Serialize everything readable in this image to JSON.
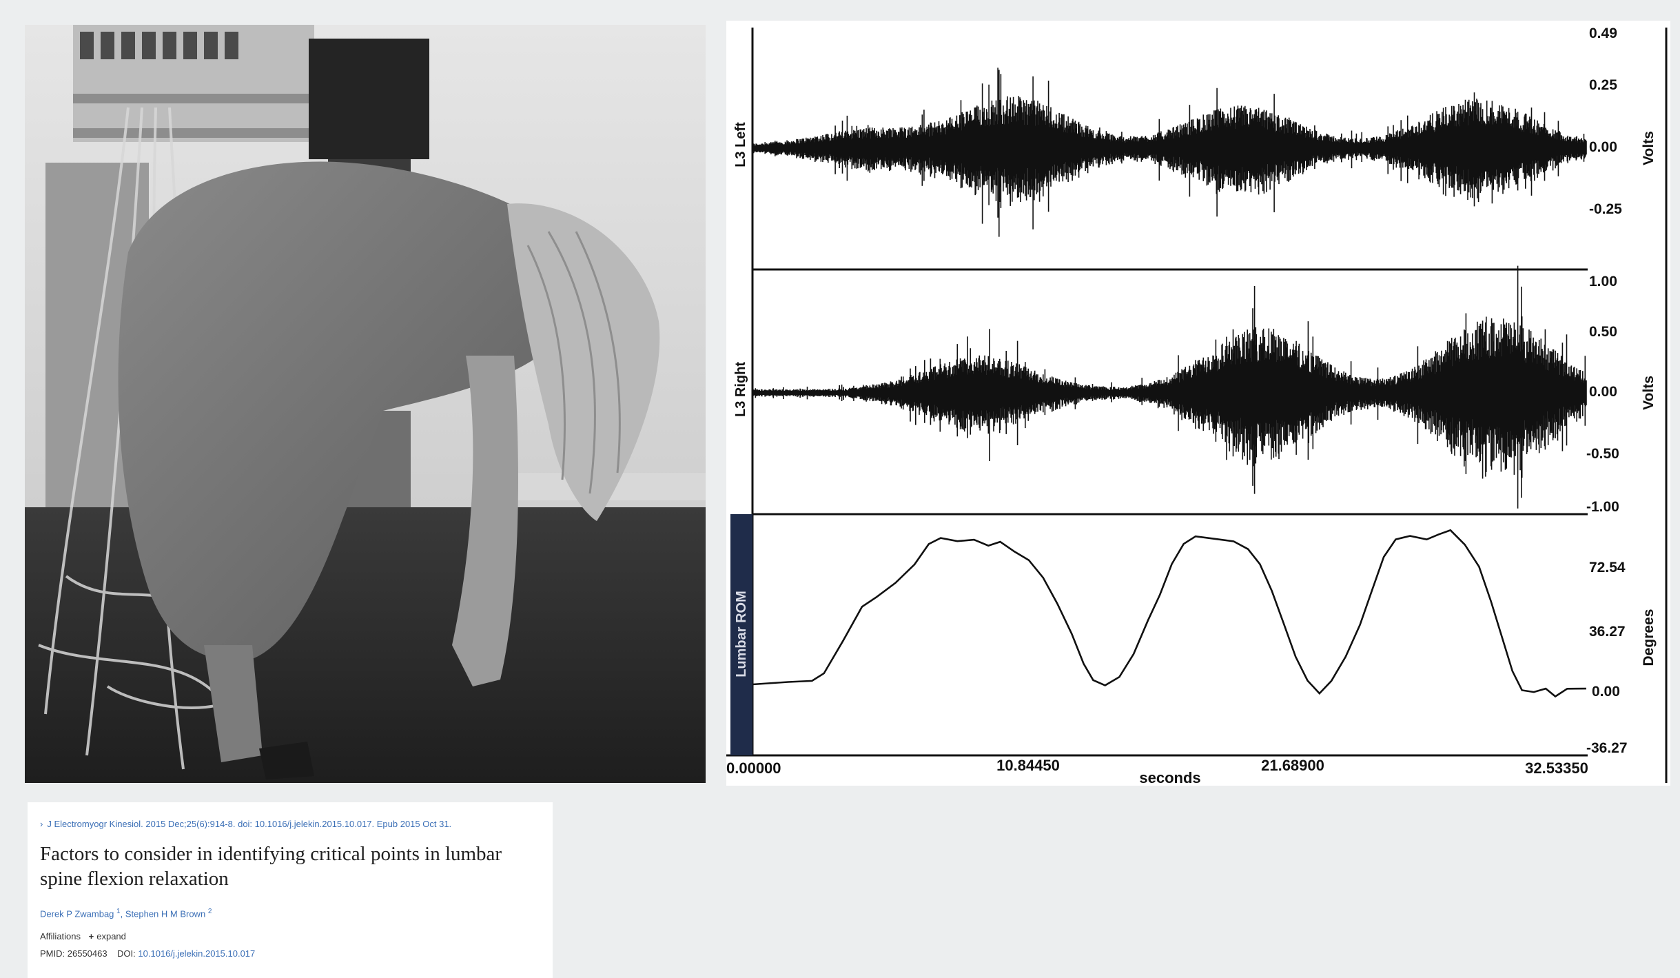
{
  "photo": {
    "description_icon": "person-bending-forward-photo"
  },
  "citation": {
    "journal_line": "J Electromyogr Kinesiol. 2015 Dec;25(6):914-8. doi: 10.1016/j.jelekin.2015.10.017. Epub 2015 Oct 31.",
    "title": "Factors to consider in identifying critical points in lumbar spine flexion relaxation",
    "authors": [
      {
        "name": "Derek P Zwambag",
        "sup": "1"
      },
      {
        "name": "Stephen H M Brown",
        "sup": "2"
      }
    ],
    "affiliations_label": "Affiliations",
    "expand_label": "expand",
    "pmid_label": "PMID:",
    "pmid": "26550463",
    "doi_label": "DOI:",
    "doi": "10.1016/j.jelekin.2015.10.017"
  },
  "chart_data": {
    "type": "line",
    "xlabel": "seconds",
    "x_ticks": [
      "0.00000",
      "10.84450",
      "21.68900",
      "32.53350"
    ],
    "x_tick_values": [
      0,
      10.8445,
      21.689,
      32.5335
    ],
    "xlim": [
      0,
      35
    ],
    "panels": [
      {
        "name": "L3 Left",
        "unit": "Volts",
        "yticks": [
          "0.49",
          "0.25",
          "0.00",
          "-0.25"
        ],
        "ylim": [
          -0.49,
          0.49
        ],
        "signal": "emg",
        "bursts": [
          {
            "t": 5.0,
            "amp": 0.07
          },
          {
            "t": 11.0,
            "amp": 0.21
          },
          {
            "t": 20.5,
            "amp": 0.17
          },
          {
            "t": 30.5,
            "amp": 0.2
          }
        ]
      },
      {
        "name": "L3 Right",
        "unit": "Volts",
        "yticks": [
          "1.00",
          "0.50",
          "0.00",
          "-0.50",
          "-1.00"
        ],
        "ylim": [
          -1.0,
          1.0
        ],
        "signal": "emg",
        "bursts": [
          {
            "t": 9.5,
            "amp": 0.3
          },
          {
            "t": 21.3,
            "amp": 0.55
          },
          {
            "t": 31.2,
            "amp": 0.65
          }
        ]
      },
      {
        "name": "Lumbar ROM",
        "unit": "Degrees",
        "yticks": [
          "72.54",
          "36.27",
          "0.00",
          "-36.27"
        ],
        "ylim": [
          -36.27,
          96
        ],
        "signal": "line",
        "points": [
          [
            0.0,
            4
          ],
          [
            1.5,
            5
          ],
          [
            2.5,
            6
          ],
          [
            3.0,
            10
          ],
          [
            3.8,
            30
          ],
          [
            4.6,
            50
          ],
          [
            5.2,
            56
          ],
          [
            6.0,
            65
          ],
          [
            6.8,
            76
          ],
          [
            7.4,
            88
          ],
          [
            7.9,
            92
          ],
          [
            8.6,
            90
          ],
          [
            9.3,
            91
          ],
          [
            9.9,
            87
          ],
          [
            10.4,
            89
          ],
          [
            11.0,
            83
          ],
          [
            11.6,
            78
          ],
          [
            12.2,
            68
          ],
          [
            12.8,
            52
          ],
          [
            13.4,
            34
          ],
          [
            13.9,
            16
          ],
          [
            14.3,
            6
          ],
          [
            14.8,
            3
          ],
          [
            15.4,
            8
          ],
          [
            16.0,
            22
          ],
          [
            16.6,
            42
          ],
          [
            17.1,
            58
          ],
          [
            17.6,
            76
          ],
          [
            18.1,
            88
          ],
          [
            18.6,
            93
          ],
          [
            19.4,
            91
          ],
          [
            20.2,
            90
          ],
          [
            20.8,
            85
          ],
          [
            21.3,
            76
          ],
          [
            21.8,
            60
          ],
          [
            22.3,
            40
          ],
          [
            22.8,
            20
          ],
          [
            23.3,
            6
          ],
          [
            23.8,
            -2
          ],
          [
            24.3,
            6
          ],
          [
            24.9,
            20
          ],
          [
            25.5,
            40
          ],
          [
            26.0,
            60
          ],
          [
            26.5,
            80
          ],
          [
            27.0,
            91
          ],
          [
            27.6,
            93
          ],
          [
            28.3,
            91
          ],
          [
            28.8,
            94
          ],
          [
            29.3,
            96
          ],
          [
            29.9,
            88
          ],
          [
            30.5,
            74
          ],
          [
            31.0,
            54
          ],
          [
            31.5,
            30
          ],
          [
            31.9,
            12
          ],
          [
            32.3,
            0
          ],
          [
            32.8,
            -1
          ],
          [
            33.3,
            1
          ],
          [
            33.7,
            -3
          ],
          [
            34.2,
            1
          ],
          [
            35.0,
            1
          ]
        ]
      }
    ]
  }
}
